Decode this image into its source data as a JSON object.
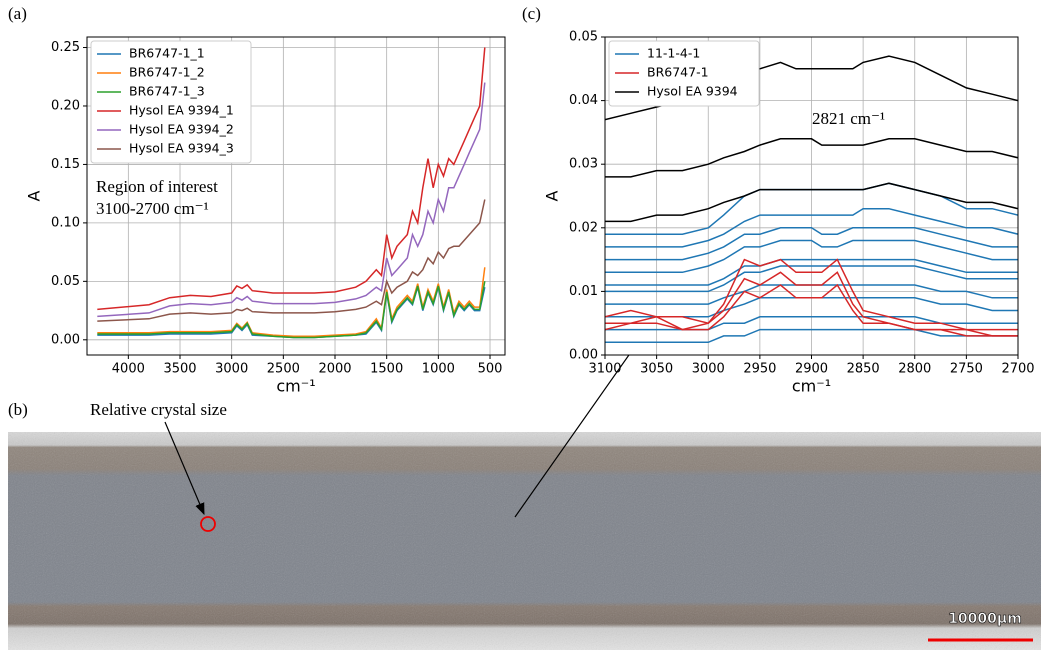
{
  "chart_data": [
    {
      "type": "line",
      "panel": "(a)",
      "x_label": "cm⁻¹",
      "y_label": "A",
      "grid": true,
      "legend": "upper left",
      "annotation": [
        "Region of interest",
        "3100-2700 cm⁻¹"
      ],
      "xlim": [
        4400,
        355
      ],
      "ylim": [
        -0.013,
        0.259
      ],
      "xticks": [
        4000,
        3500,
        3000,
        2500,
        2000,
        1500,
        1000,
        500
      ],
      "yticks": [
        {
          "value": 0,
          "label": "0.00"
        },
        {
          "value": 0.05,
          "label": "0.05"
        },
        {
          "value": 0.1,
          "label": "0.10"
        },
        {
          "value": 0.15,
          "label": "0.15"
        },
        {
          "value": 0.2,
          "label": "0.20"
        },
        {
          "value": 0.25,
          "label": "0.25"
        }
      ],
      "x": [
        4300,
        3800,
        3600,
        3400,
        3200,
        3000,
        2950,
        2900,
        2850,
        2800,
        2600,
        2400,
        2200,
        2000,
        1800,
        1700,
        1600,
        1550,
        1500,
        1450,
        1400,
        1300,
        1250,
        1200,
        1150,
        1100,
        1050,
        1000,
        950,
        900,
        850,
        800,
        750,
        700,
        650,
        600,
        550
      ],
      "series": [
        {
          "name": "BR6747-1_1",
          "color": "#1f77b4",
          "values": [
            0.004,
            0.004,
            0.005,
            0.005,
            0.005,
            0.006,
            0.012,
            0.008,
            0.013,
            0.004,
            0.003,
            0.002,
            0.002,
            0.003,
            0.004,
            0.005,
            0.015,
            0.008,
            0.04,
            0.015,
            0.025,
            0.035,
            0.03,
            0.045,
            0.025,
            0.04,
            0.03,
            0.045,
            0.025,
            0.04,
            0.02,
            0.03,
            0.025,
            0.03,
            0.025,
            0.025,
            0.045
          ]
        },
        {
          "name": "BR6747-1_2",
          "color": "#ff7f0e",
          "values": [
            0.006,
            0.006,
            0.007,
            0.007,
            0.007,
            0.008,
            0.014,
            0.01,
            0.015,
            0.006,
            0.004,
            0.003,
            0.003,
            0.004,
            0.005,
            0.007,
            0.018,
            0.01,
            0.043,
            0.018,
            0.028,
            0.038,
            0.033,
            0.048,
            0.028,
            0.043,
            0.033,
            0.048,
            0.028,
            0.043,
            0.023,
            0.033,
            0.028,
            0.033,
            0.028,
            0.028,
            0.062
          ]
        },
        {
          "name": "BR6747-1_3",
          "color": "#2ca02c",
          "values": [
            0.005,
            0.005,
            0.006,
            0.006,
            0.006,
            0.007,
            0.013,
            0.009,
            0.014,
            0.005,
            0.003,
            0.002,
            0.002,
            0.003,
            0.004,
            0.006,
            0.016,
            0.009,
            0.041,
            0.016,
            0.026,
            0.036,
            0.031,
            0.046,
            0.026,
            0.041,
            0.031,
            0.046,
            0.026,
            0.041,
            0.021,
            0.031,
            0.026,
            0.031,
            0.026,
            0.026,
            0.05
          ]
        },
        {
          "name": "Hysol EA 9394_1",
          "color": "#d62728",
          "values": [
            0.026,
            0.03,
            0.036,
            0.038,
            0.037,
            0.04,
            0.046,
            0.044,
            0.047,
            0.042,
            0.04,
            0.04,
            0.04,
            0.041,
            0.045,
            0.05,
            0.06,
            0.055,
            0.09,
            0.07,
            0.08,
            0.09,
            0.11,
            0.1,
            0.13,
            0.155,
            0.13,
            0.15,
            0.14,
            0.155,
            0.15,
            0.16,
            0.17,
            0.18,
            0.19,
            0.2,
            0.25
          ]
        },
        {
          "name": "Hysol EA 9394_2",
          "color": "#9467bd",
          "values": [
            0.02,
            0.023,
            0.029,
            0.031,
            0.03,
            0.032,
            0.036,
            0.034,
            0.037,
            0.033,
            0.031,
            0.031,
            0.031,
            0.032,
            0.035,
            0.038,
            0.045,
            0.042,
            0.07,
            0.055,
            0.06,
            0.07,
            0.09,
            0.08,
            0.09,
            0.11,
            0.1,
            0.12,
            0.11,
            0.13,
            0.13,
            0.14,
            0.15,
            0.16,
            0.17,
            0.18,
            0.22
          ]
        },
        {
          "name": "Hysol EA 9394_3",
          "color": "#8c564b",
          "values": [
            0.016,
            0.018,
            0.022,
            0.023,
            0.022,
            0.023,
            0.026,
            0.025,
            0.027,
            0.024,
            0.023,
            0.023,
            0.023,
            0.024,
            0.026,
            0.028,
            0.033,
            0.03,
            0.05,
            0.04,
            0.045,
            0.05,
            0.058,
            0.055,
            0.06,
            0.07,
            0.065,
            0.075,
            0.07,
            0.078,
            0.08,
            0.08,
            0.085,
            0.09,
            0.095,
            0.1,
            0.12
          ]
        }
      ]
    },
    {
      "type": "line",
      "panel": "(c)",
      "x_label": "cm⁻¹",
      "y_label": "A",
      "grid": true,
      "legend": "upper left",
      "annotation": [
        "2821 cm⁻¹"
      ],
      "xlim": [
        3100,
        2700
      ],
      "ylim": [
        0,
        0.05
      ],
      "xticks": [
        3100,
        3050,
        3000,
        2950,
        2900,
        2850,
        2800,
        2750,
        2700
      ],
      "yticks": [
        {
          "value": 0,
          "label": "0.00"
        },
        {
          "value": 0.01,
          "label": "0.01"
        },
        {
          "value": 0.02,
          "label": "0.02"
        },
        {
          "value": 0.03,
          "label": "0.03"
        },
        {
          "value": 0.04,
          "label": "0.04"
        },
        {
          "value": 0.05,
          "label": "0.05"
        }
      ],
      "x": [
        3100,
        3075,
        3050,
        3025,
        3000,
        2985,
        2965,
        2950,
        2930,
        2915,
        2900,
        2890,
        2875,
        2860,
        2850,
        2825,
        2800,
        2775,
        2750,
        2725,
        2700
      ],
      "series": [
        {
          "name": "11-1-4-1",
          "color": "#1f77b4",
          "values": [
            0.019,
            0.019,
            0.019,
            0.019,
            0.02,
            0.022,
            0.025,
            0.026,
            0.026,
            0.026,
            0.026,
            0.026,
            0.026,
            0.026,
            0.026,
            0.027,
            0.026,
            0.025,
            0.023,
            0.023,
            0.022
          ]
        },
        {
          "color": "#1f77b4",
          "values": [
            0.017,
            0.017,
            0.017,
            0.017,
            0.018,
            0.019,
            0.021,
            0.022,
            0.022,
            0.022,
            0.022,
            0.022,
            0.022,
            0.022,
            0.023,
            0.023,
            0.022,
            0.021,
            0.02,
            0.02,
            0.019
          ]
        },
        {
          "color": "#1f77b4",
          "values": [
            0.015,
            0.015,
            0.015,
            0.015,
            0.016,
            0.017,
            0.019,
            0.019,
            0.02,
            0.02,
            0.02,
            0.019,
            0.019,
            0.02,
            0.02,
            0.02,
            0.02,
            0.019,
            0.018,
            0.017,
            0.017
          ]
        },
        {
          "color": "#1f77b4",
          "values": [
            0.013,
            0.013,
            0.013,
            0.013,
            0.014,
            0.015,
            0.017,
            0.017,
            0.018,
            0.018,
            0.018,
            0.017,
            0.017,
            0.018,
            0.018,
            0.018,
            0.018,
            0.017,
            0.016,
            0.015,
            0.015
          ]
        },
        {
          "color": "#1f77b4",
          "values": [
            0.011,
            0.011,
            0.011,
            0.011,
            0.011,
            0.012,
            0.014,
            0.014,
            0.015,
            0.015,
            0.015,
            0.015,
            0.015,
            0.015,
            0.015,
            0.015,
            0.015,
            0.014,
            0.013,
            0.013,
            0.013
          ]
        },
        {
          "color": "#1f77b4",
          "values": [
            0.01,
            0.01,
            0.01,
            0.01,
            0.01,
            0.011,
            0.013,
            0.013,
            0.014,
            0.014,
            0.014,
            0.014,
            0.014,
            0.014,
            0.014,
            0.014,
            0.014,
            0.013,
            0.012,
            0.012,
            0.012
          ]
        },
        {
          "color": "#1f77b4",
          "values": [
            0.008,
            0.008,
            0.008,
            0.008,
            0.008,
            0.009,
            0.01,
            0.011,
            0.011,
            0.011,
            0.011,
            0.011,
            0.011,
            0.011,
            0.011,
            0.011,
            0.011,
            0.01,
            0.01,
            0.009,
            0.009
          ]
        },
        {
          "color": "#1f77b4",
          "values": [
            0.006,
            0.006,
            0.006,
            0.006,
            0.006,
            0.007,
            0.008,
            0.009,
            0.009,
            0.009,
            0.009,
            0.009,
            0.009,
            0.009,
            0.009,
            0.009,
            0.009,
            0.008,
            0.008,
            0.007,
            0.007
          ]
        },
        {
          "color": "#1f77b4",
          "values": [
            0.004,
            0.004,
            0.004,
            0.004,
            0.004,
            0.005,
            0.005,
            0.006,
            0.006,
            0.006,
            0.006,
            0.006,
            0.006,
            0.006,
            0.006,
            0.006,
            0.006,
            0.005,
            0.005,
            0.005,
            0.005
          ]
        },
        {
          "color": "#1f77b4",
          "values": [
            0.002,
            0.002,
            0.002,
            0.002,
            0.002,
            0.003,
            0.003,
            0.004,
            0.004,
            0.004,
            0.004,
            0.004,
            0.004,
            0.004,
            0.004,
            0.004,
            0.004,
            0.003,
            0.003,
            0.003,
            0.003
          ]
        },
        {
          "name": "BR6747-1",
          "color": "#d62728",
          "values": [
            0.006,
            0.007,
            0.006,
            0.004,
            0.005,
            0.008,
            0.015,
            0.014,
            0.015,
            0.013,
            0.013,
            0.013,
            0.015,
            0.01,
            0.007,
            0.006,
            0.005,
            0.005,
            0.004,
            0.004,
            0.004
          ]
        },
        {
          "color": "#d62728",
          "values": [
            0.004,
            0.005,
            0.006,
            0.006,
            0.005,
            0.007,
            0.012,
            0.011,
            0.013,
            0.011,
            0.011,
            0.011,
            0.013,
            0.008,
            0.006,
            0.005,
            0.004,
            0.004,
            0.004,
            0.003,
            0.003
          ]
        },
        {
          "color": "#d62728",
          "values": [
            0.005,
            0.005,
            0.005,
            0.004,
            0.004,
            0.006,
            0.01,
            0.009,
            0.011,
            0.009,
            0.009,
            0.009,
            0.011,
            0.007,
            0.005,
            0.005,
            0.004,
            0.004,
            0.003,
            0.003,
            0.003
          ]
        },
        {
          "name": "Hysol EA 9394",
          "color": "#000000",
          "values": [
            0.037,
            0.038,
            0.039,
            0.04,
            0.042,
            0.043,
            0.045,
            0.045,
            0.046,
            0.045,
            0.045,
            0.045,
            0.045,
            0.045,
            0.046,
            0.047,
            0.046,
            0.044,
            0.042,
            0.041,
            0.04
          ]
        },
        {
          "color": "#000000",
          "values": [
            0.028,
            0.028,
            0.029,
            0.029,
            0.03,
            0.031,
            0.032,
            0.033,
            0.034,
            0.034,
            0.034,
            0.033,
            0.033,
            0.033,
            0.033,
            0.034,
            0.034,
            0.033,
            0.032,
            0.032,
            0.031
          ]
        },
        {
          "color": "#000000",
          "values": [
            0.021,
            0.021,
            0.022,
            0.022,
            0.023,
            0.024,
            0.025,
            0.026,
            0.026,
            0.026,
            0.026,
            0.026,
            0.026,
            0.026,
            0.026,
            0.027,
            0.026,
            0.025,
            0.024,
            0.024,
            0.023
          ]
        }
      ]
    }
  ],
  "image_panel": {
    "panel": "(b)",
    "annotation": "Relative crystal size",
    "scale_bar": "10000µm"
  }
}
